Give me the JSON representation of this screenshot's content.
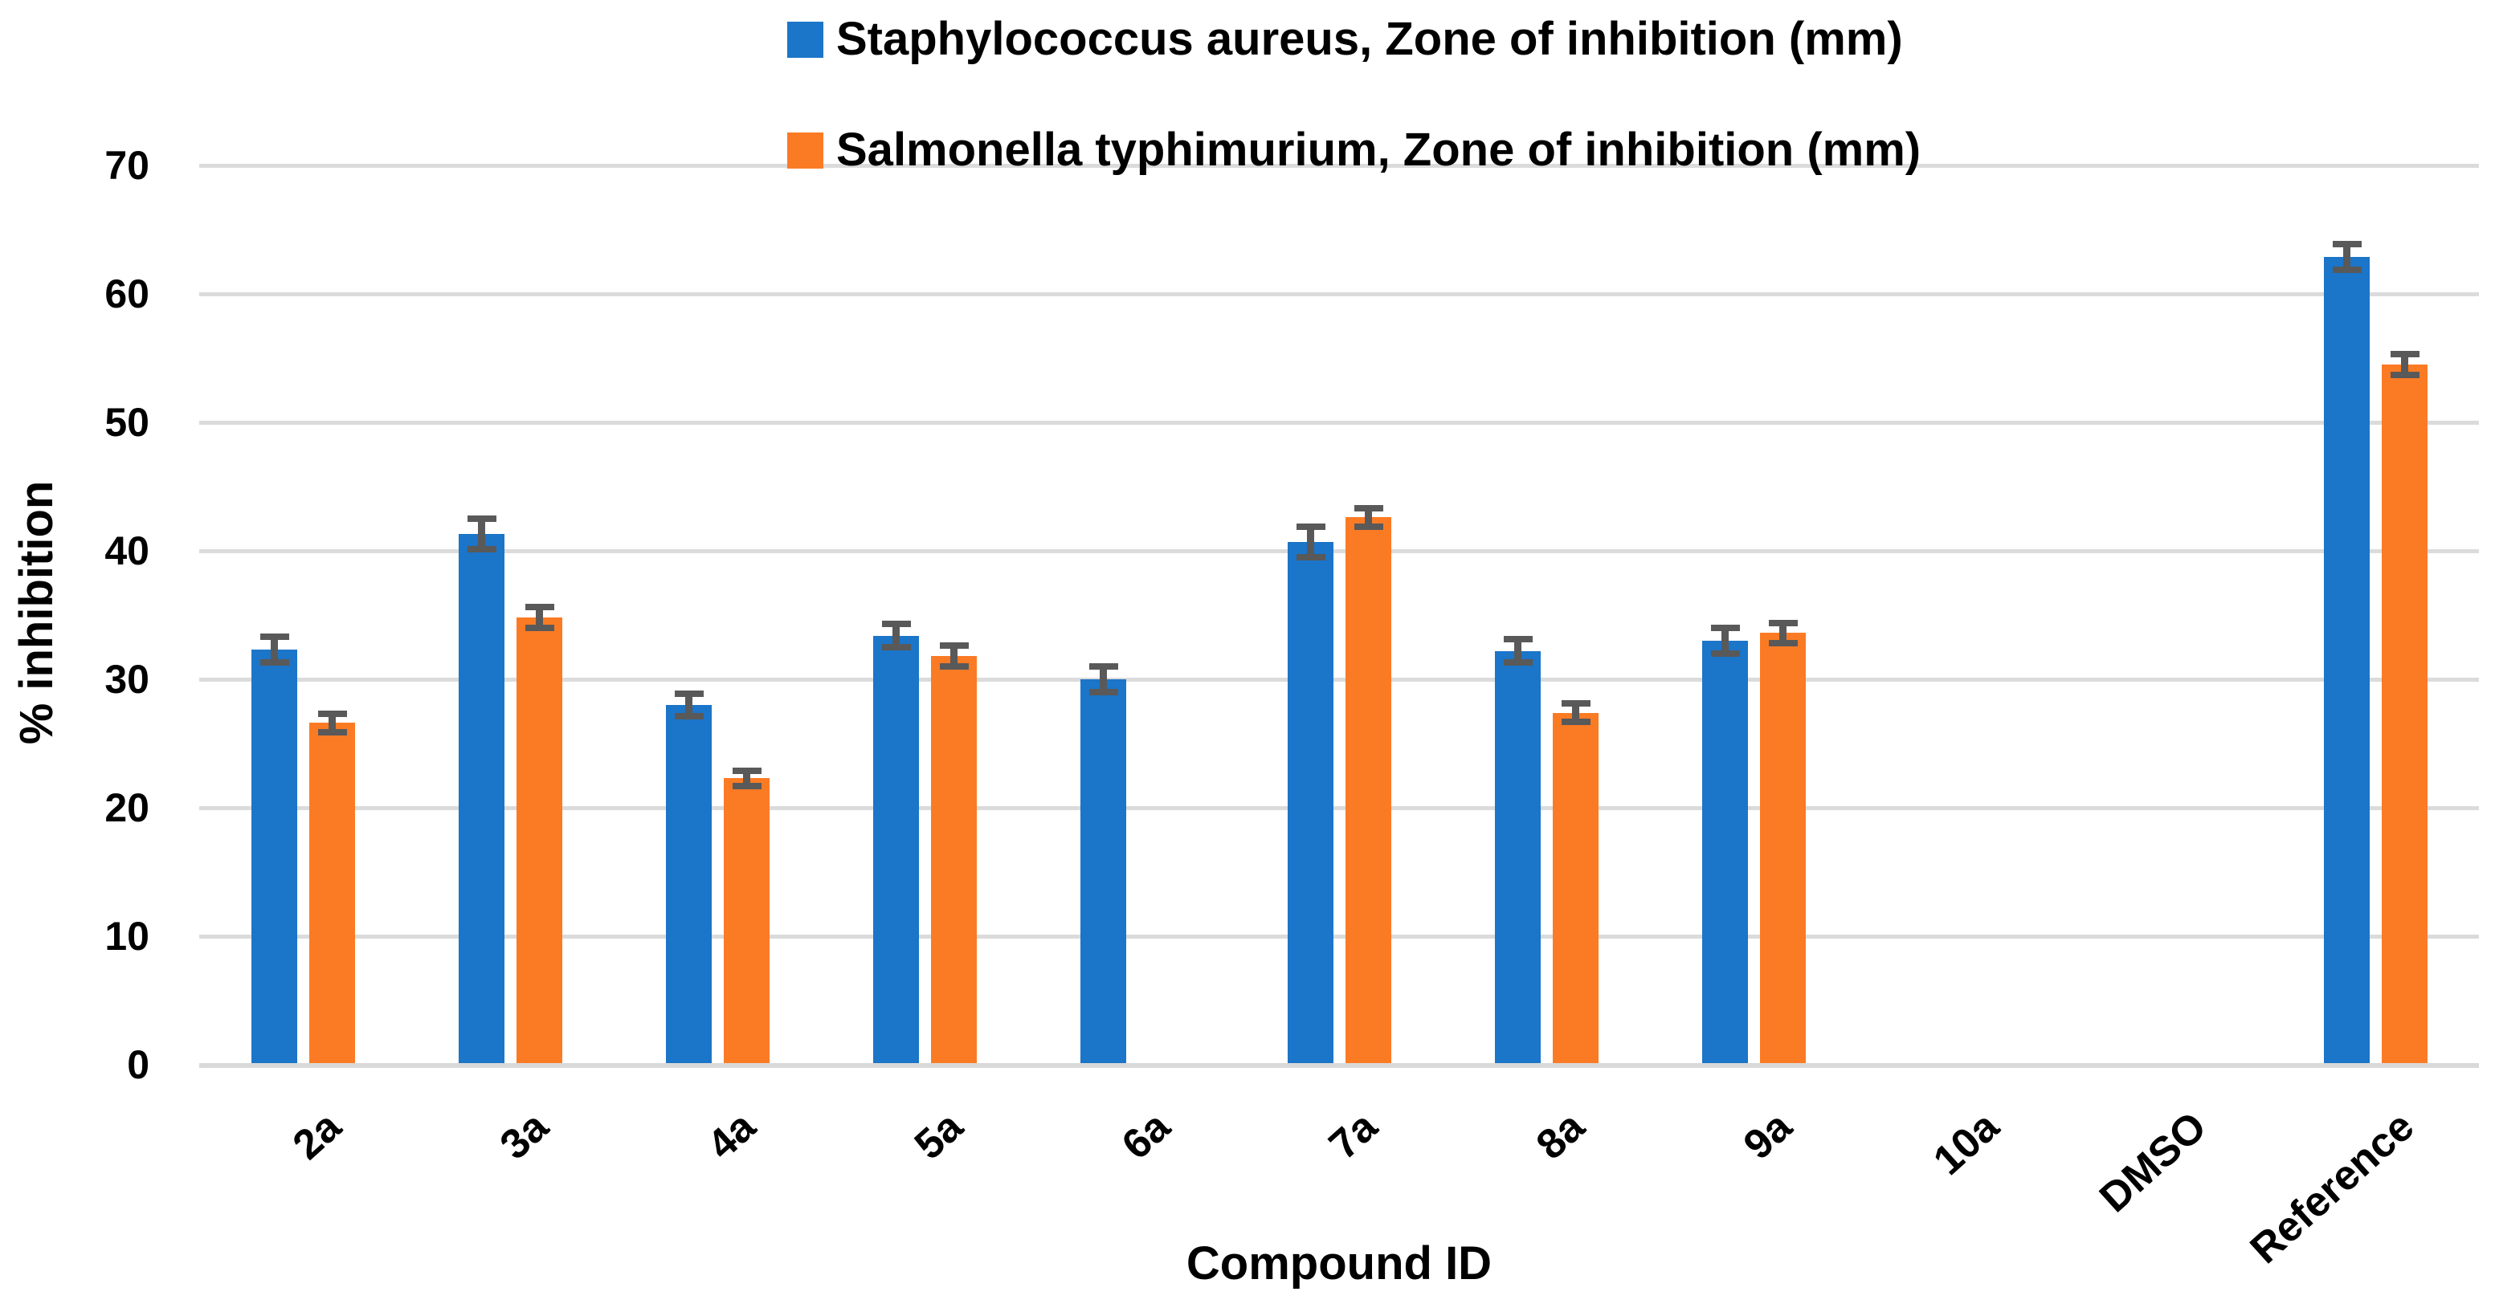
{
  "chart_data": {
    "type": "bar",
    "title": "",
    "xlabel": "Compound ID",
    "ylabel": "% inhibition",
    "categories": [
      "2a",
      "3a",
      "4a",
      "5a",
      "6a",
      "7a",
      "8a",
      "9a",
      "10a",
      "DMSO",
      "Reference"
    ],
    "series": [
      {
        "name": "Staphylococcus aureus, Zone of inhibition (mm)",
        "color": "#1B75C8",
        "values": [
          32.3,
          41.3,
          28.0,
          33.4,
          30.0,
          40.7,
          32.2,
          33.0,
          null,
          null,
          62.9
        ],
        "errors": [
          1.0,
          1.2,
          0.9,
          0.9,
          1.0,
          1.2,
          0.9,
          1.0,
          null,
          null,
          1.0
        ]
      },
      {
        "name": "Salmonella typhimurium, Zone of inhibition (mm)",
        "color": "#FB7B25",
        "values": [
          26.6,
          34.8,
          22.3,
          31.8,
          null,
          42.6,
          27.4,
          33.6,
          null,
          null,
          54.5
        ],
        "errors": [
          0.7,
          0.8,
          0.6,
          0.8,
          null,
          0.7,
          0.7,
          0.8,
          null,
          null,
          0.8
        ]
      }
    ],
    "ylim": [
      0,
      70
    ],
    "yticks": [
      0,
      10,
      20,
      30,
      40,
      50,
      60,
      70
    ],
    "grid": true,
    "legend_position": "top-center",
    "gridline_color": "#DBDBDB",
    "axis_line_color": "#D9D9D9",
    "error_bar_color": "#595959",
    "text_color": "#000000",
    "background": "#FFFFFF"
  }
}
